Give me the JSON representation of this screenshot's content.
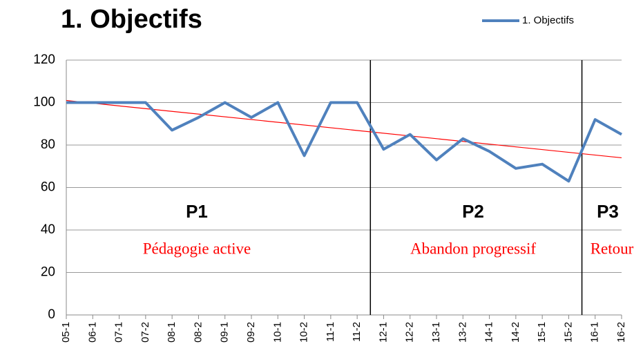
{
  "chart_data": {
    "type": "line",
    "title": "1. Objectifs",
    "categories": [
      "05-1",
      "06-1",
      "07-1",
      "07-2",
      "08-1",
      "08-2",
      "09-1",
      "09-2",
      "10-1",
      "10-2",
      "11-1",
      "11-2",
      "12-1",
      "12-2",
      "13-1",
      "13-2",
      "14-1",
      "14-2",
      "15-1",
      "15-2",
      "16-1",
      "16-2"
    ],
    "series": [
      {
        "name": "1. Objectifs",
        "color": "#4f81bd",
        "values": [
          100,
          100,
          100,
          100,
          87,
          93,
          100,
          93,
          100,
          75,
          100,
          100,
          78,
          85,
          73,
          83,
          77,
          69,
          71,
          63,
          92,
          85
        ]
      }
    ],
    "trendline": {
      "color": "#ff0000",
      "values": [
        101,
        74
      ]
    },
    "period_breaks": [
      11.5,
      19.5
    ],
    "annotations": [
      {
        "period": "P1",
        "label": "Pédagogie active"
      },
      {
        "period": "P2",
        "label": "Abandon progressif"
      },
      {
        "period": "P3",
        "label": "Retour"
      }
    ],
    "ylim": [
      0,
      120
    ],
    "yticks": [
      0,
      20,
      40,
      60,
      80,
      100,
      120
    ],
    "grid": true,
    "legend": "top-right"
  }
}
